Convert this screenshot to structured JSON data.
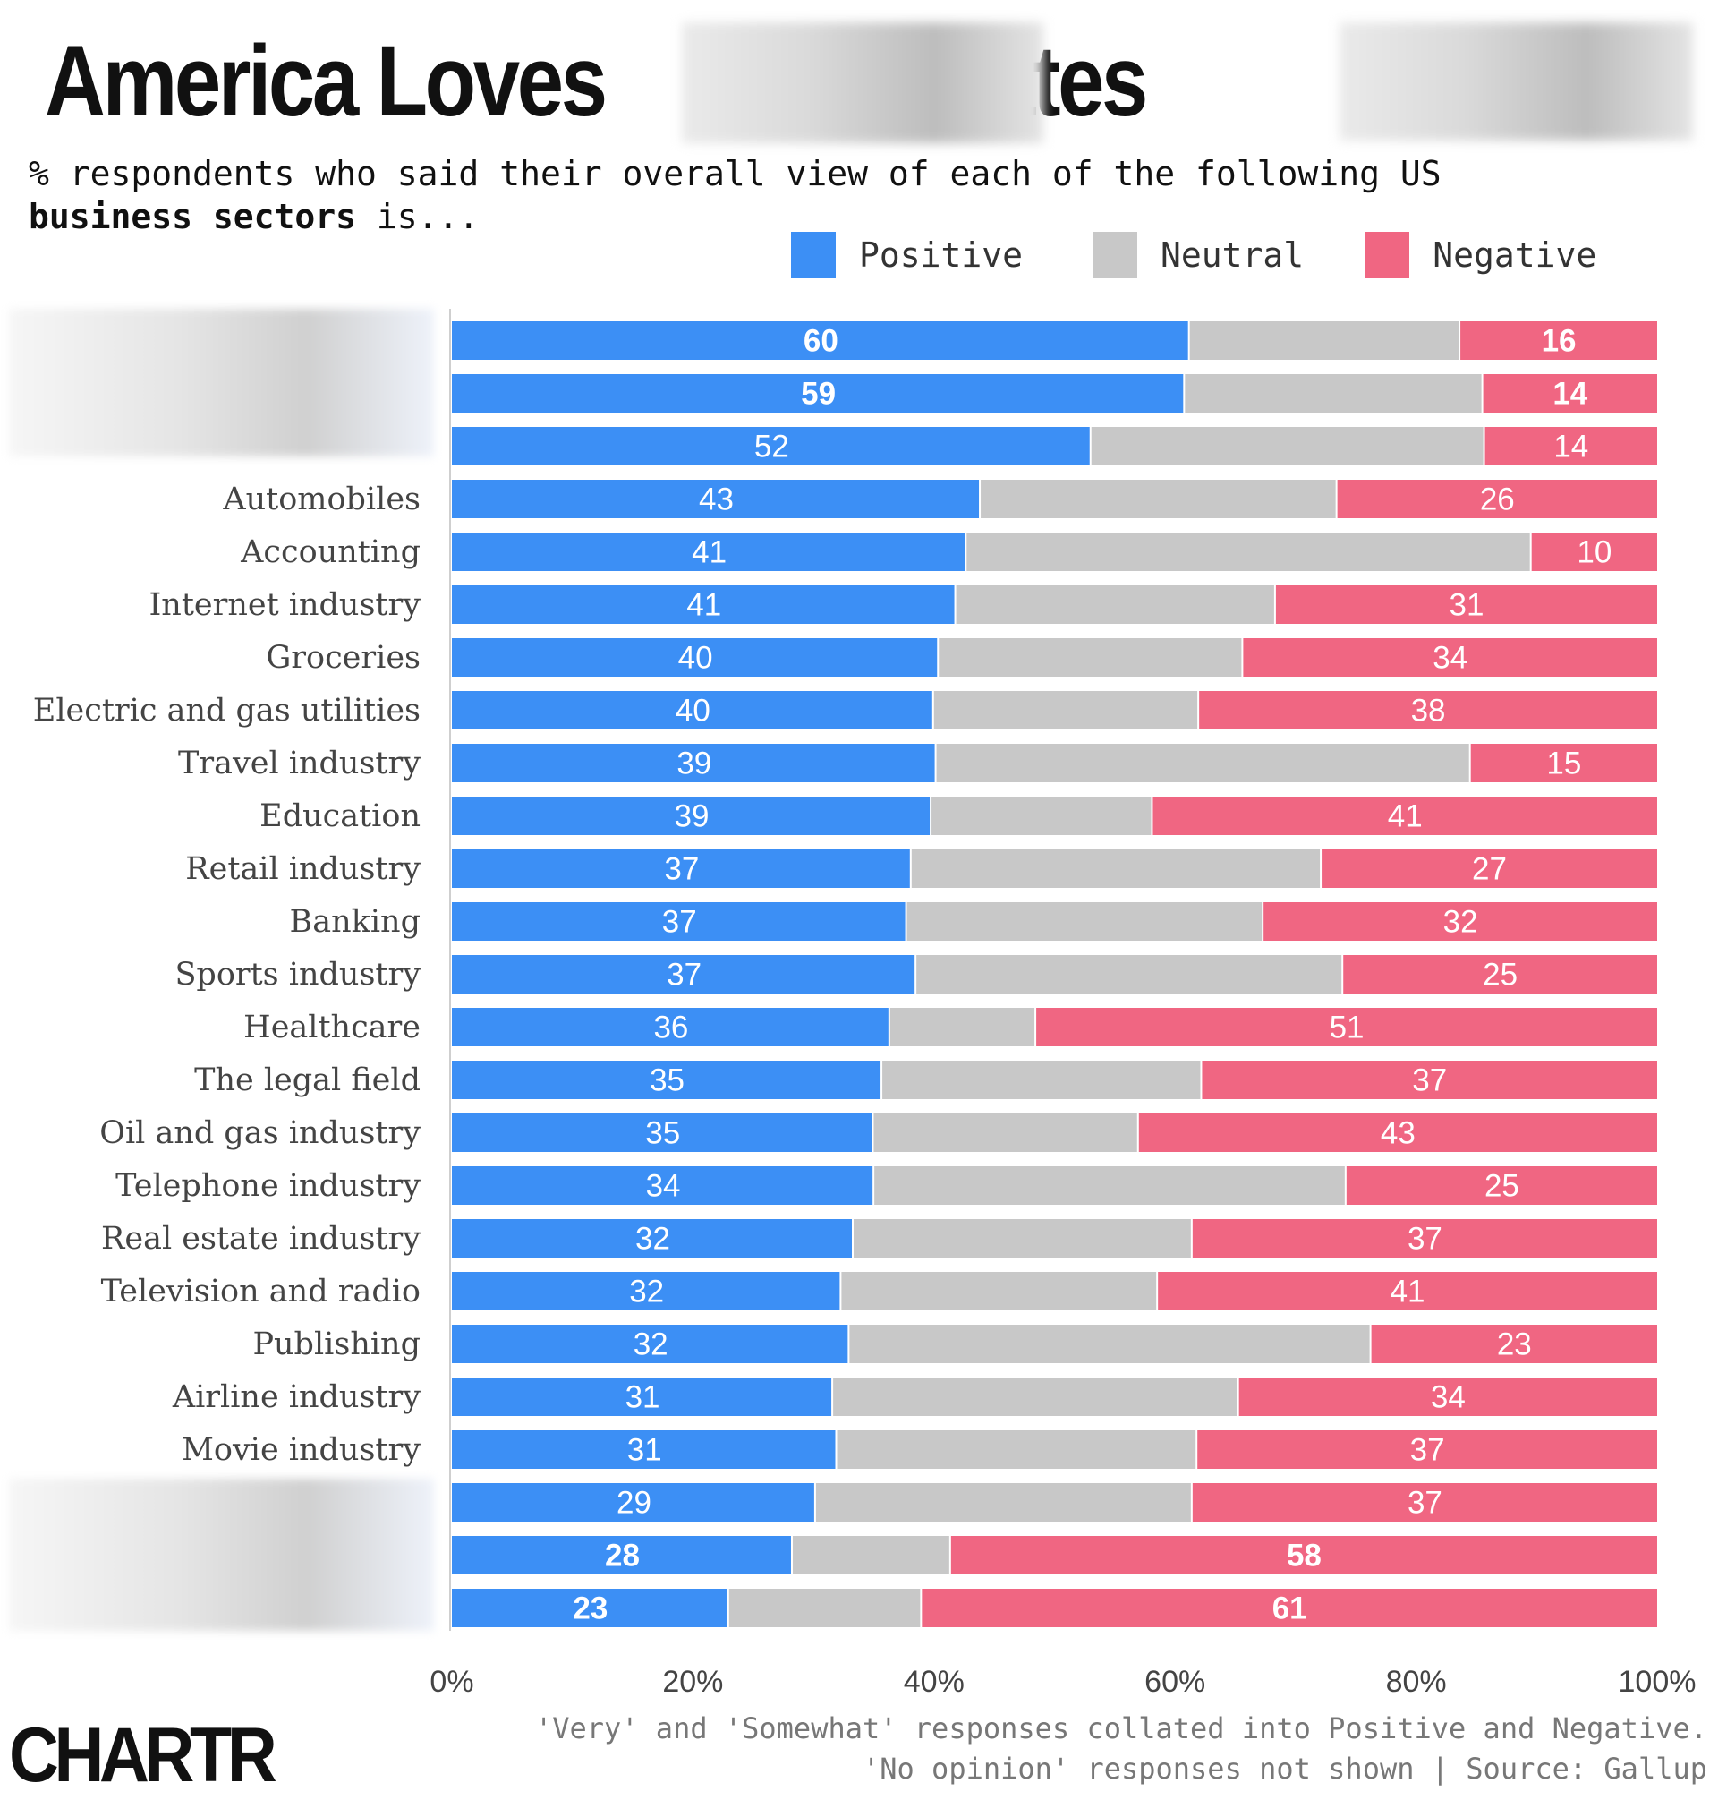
{
  "header": {
    "title_part1": "America Loves",
    "title_part2": ", Hates",
    "subtitle_line1": "% respondents who said their overall view of each of the following US",
    "subtitle_bold": "business sectors",
    "subtitle_rest": " is..."
  },
  "legend": [
    {
      "label": "Positive",
      "color": "#3c8ff5"
    },
    {
      "label": "Neutral",
      "color": "#c8c8c8"
    },
    {
      "label": "Negative",
      "color": "#f06682"
    }
  ],
  "footer": {
    "note_line1": "'Very' and 'Somewhat' responses collated into Positive and Negative.",
    "note_line2": "'No opinion' responses not shown | Source: Gallup",
    "brand": "CHARTR"
  },
  "chart_data": {
    "type": "bar",
    "orientation": "horizontal",
    "stacked": true,
    "normalized": true,
    "categories": [
      "",
      "",
      "",
      "Automobiles",
      "Accounting",
      "Internet industry",
      "Groceries",
      "Electric and gas utilities",
      "Travel industry",
      "Education",
      "Retail industry",
      "Banking",
      "Sports industry",
      "Healthcare",
      "The legal field",
      "Oil and gas industry",
      "Telephone industry",
      "Real estate industry",
      "Television and radio",
      "Publishing",
      "Airline industry",
      "Movie industry",
      "",
      "",
      ""
    ],
    "series": [
      {
        "name": "Positive",
        "color": "#3c8ff5",
        "values": [
          60,
          59,
          52,
          43,
          41,
          41,
          40,
          40,
          39,
          39,
          37,
          37,
          37,
          36,
          35,
          35,
          34,
          32,
          32,
          32,
          31,
          31,
          29,
          28,
          23
        ]
      },
      {
        "name": "Neutral",
        "color": "#c8c8c8",
        "values": [
          22,
          24,
          32,
          29,
          45,
          26,
          25,
          22,
          43,
          18,
          33,
          29,
          34,
          12,
          26,
          22,
          38,
          27,
          26,
          42,
          33,
          29,
          30,
          13,
          16
        ]
      },
      {
        "name": "Negative",
        "color": "#f06682",
        "values": [
          16,
          14,
          14,
          26,
          10,
          31,
          34,
          38,
          15,
          41,
          27,
          32,
          25,
          51,
          37,
          43,
          25,
          37,
          41,
          23,
          34,
          37,
          37,
          58,
          61
        ]
      }
    ],
    "bold_rows": [
      0,
      1,
      23,
      24
    ],
    "xlim": [
      0,
      100
    ],
    "x_ticks": [
      "0%",
      "20%",
      "40%",
      "60%",
      "80%",
      "100%"
    ]
  }
}
